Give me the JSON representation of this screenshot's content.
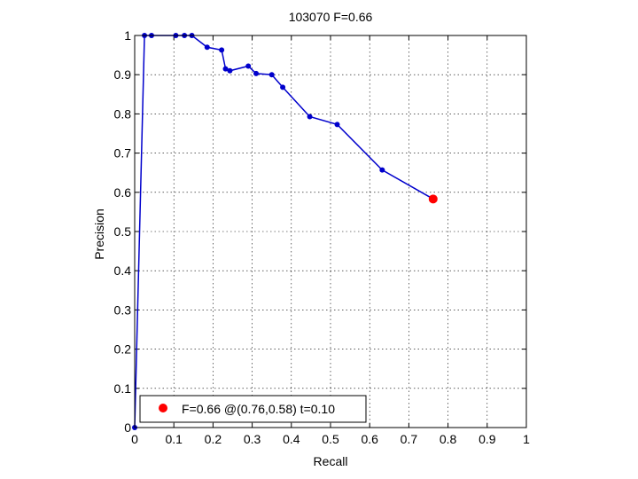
{
  "chart_data": {
    "type": "line",
    "title": "103070 F=0.66",
    "xlabel": "Recall",
    "ylabel": "Precision",
    "xlim": [
      0,
      1
    ],
    "ylim": [
      0,
      1
    ],
    "grid": true,
    "x_ticks": [
      "0",
      "0.1",
      "0.2",
      "0.3",
      "0.4",
      "0.5",
      "0.6",
      "0.7",
      "0.8",
      "0.9",
      "1"
    ],
    "y_ticks": [
      "0",
      "0.1",
      "0.2",
      "0.3",
      "0.4",
      "0.5",
      "0.6",
      "0.7",
      "0.8",
      "0.9",
      "1"
    ],
    "series": [
      {
        "color": "#0000cc",
        "x": [
          0.0,
          0.025,
          0.043,
          0.105,
          0.127,
          0.146,
          0.185,
          0.222,
          0.232,
          0.243,
          0.29,
          0.31,
          0.35,
          0.378,
          0.447,
          0.517,
          0.632,
          0.762
        ],
        "y": [
          0.0,
          1.0,
          1.0,
          1.0,
          1.0,
          1.0,
          0.97,
          0.963,
          0.915,
          0.91,
          0.922,
          0.903,
          0.9,
          0.868,
          0.793,
          0.773,
          0.657,
          0.583
        ]
      }
    ],
    "best_point": {
      "x": 0.762,
      "y": 0.583,
      "color": "#ff0000"
    },
    "legend": {
      "position": "bottom-left",
      "entries": [
        "F=0.66 @(0.76,0.58) t=0.10"
      ]
    }
  }
}
